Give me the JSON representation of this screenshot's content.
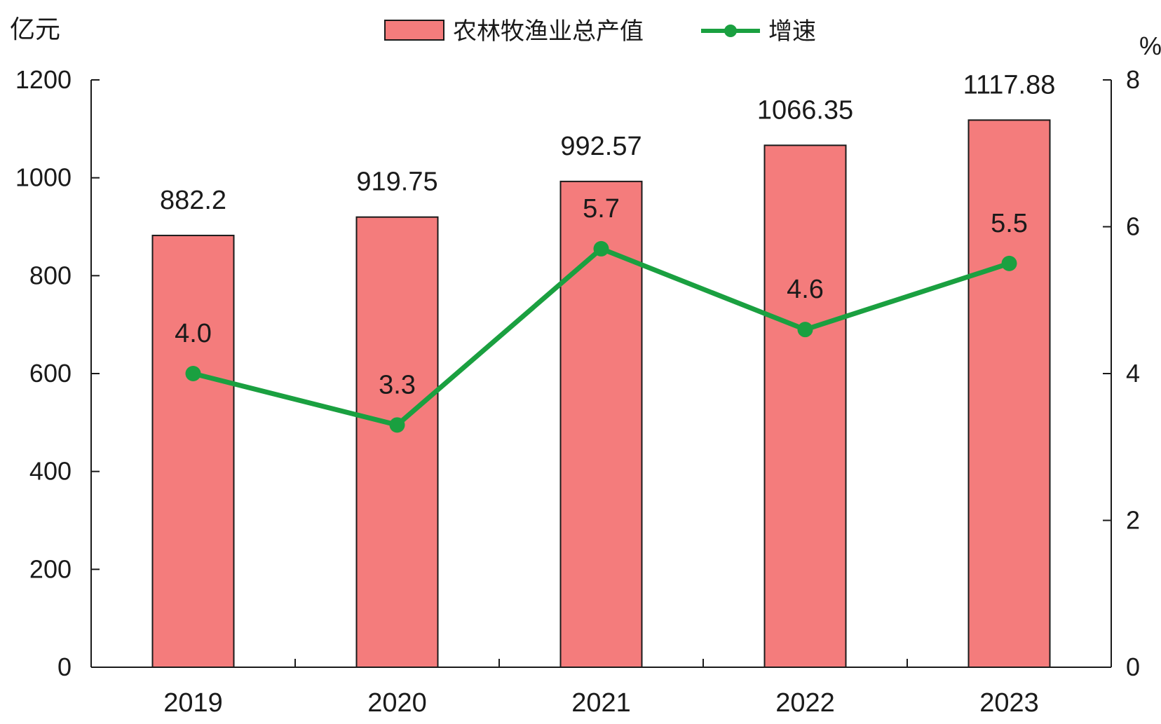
{
  "chart_data": {
    "type": "bar",
    "categories": [
      "2019",
      "2020",
      "2021",
      "2022",
      "2023"
    ],
    "series": [
      {
        "name": "农林牧渔业总产值",
        "type": "bar",
        "axis": "left",
        "values": [
          882.2,
          919.75,
          992.57,
          1066.35,
          1117.88
        ],
        "labels": [
          "882.2",
          "919.75",
          "992.57",
          "1066.35",
          "1117.88"
        ],
        "color": "#f47c7c"
      },
      {
        "name": "增速",
        "type": "line",
        "axis": "right",
        "values": [
          4.0,
          3.3,
          5.7,
          4.6,
          5.5
        ],
        "labels": [
          "4.0",
          "3.3",
          "5.7",
          "4.6",
          "5.5"
        ],
        "color": "#1aa040"
      }
    ],
    "y_left": {
      "unit": "亿元",
      "range": [
        0,
        1200
      ],
      "ticks": [
        "0",
        "200",
        "400",
        "600",
        "800",
        "1000",
        "1200"
      ]
    },
    "y_right": {
      "unit": "%",
      "range": [
        0,
        8
      ],
      "ticks": [
        "0",
        "2",
        "4",
        "6",
        "8"
      ]
    },
    "legend_position": "top-center",
    "grid": false
  }
}
